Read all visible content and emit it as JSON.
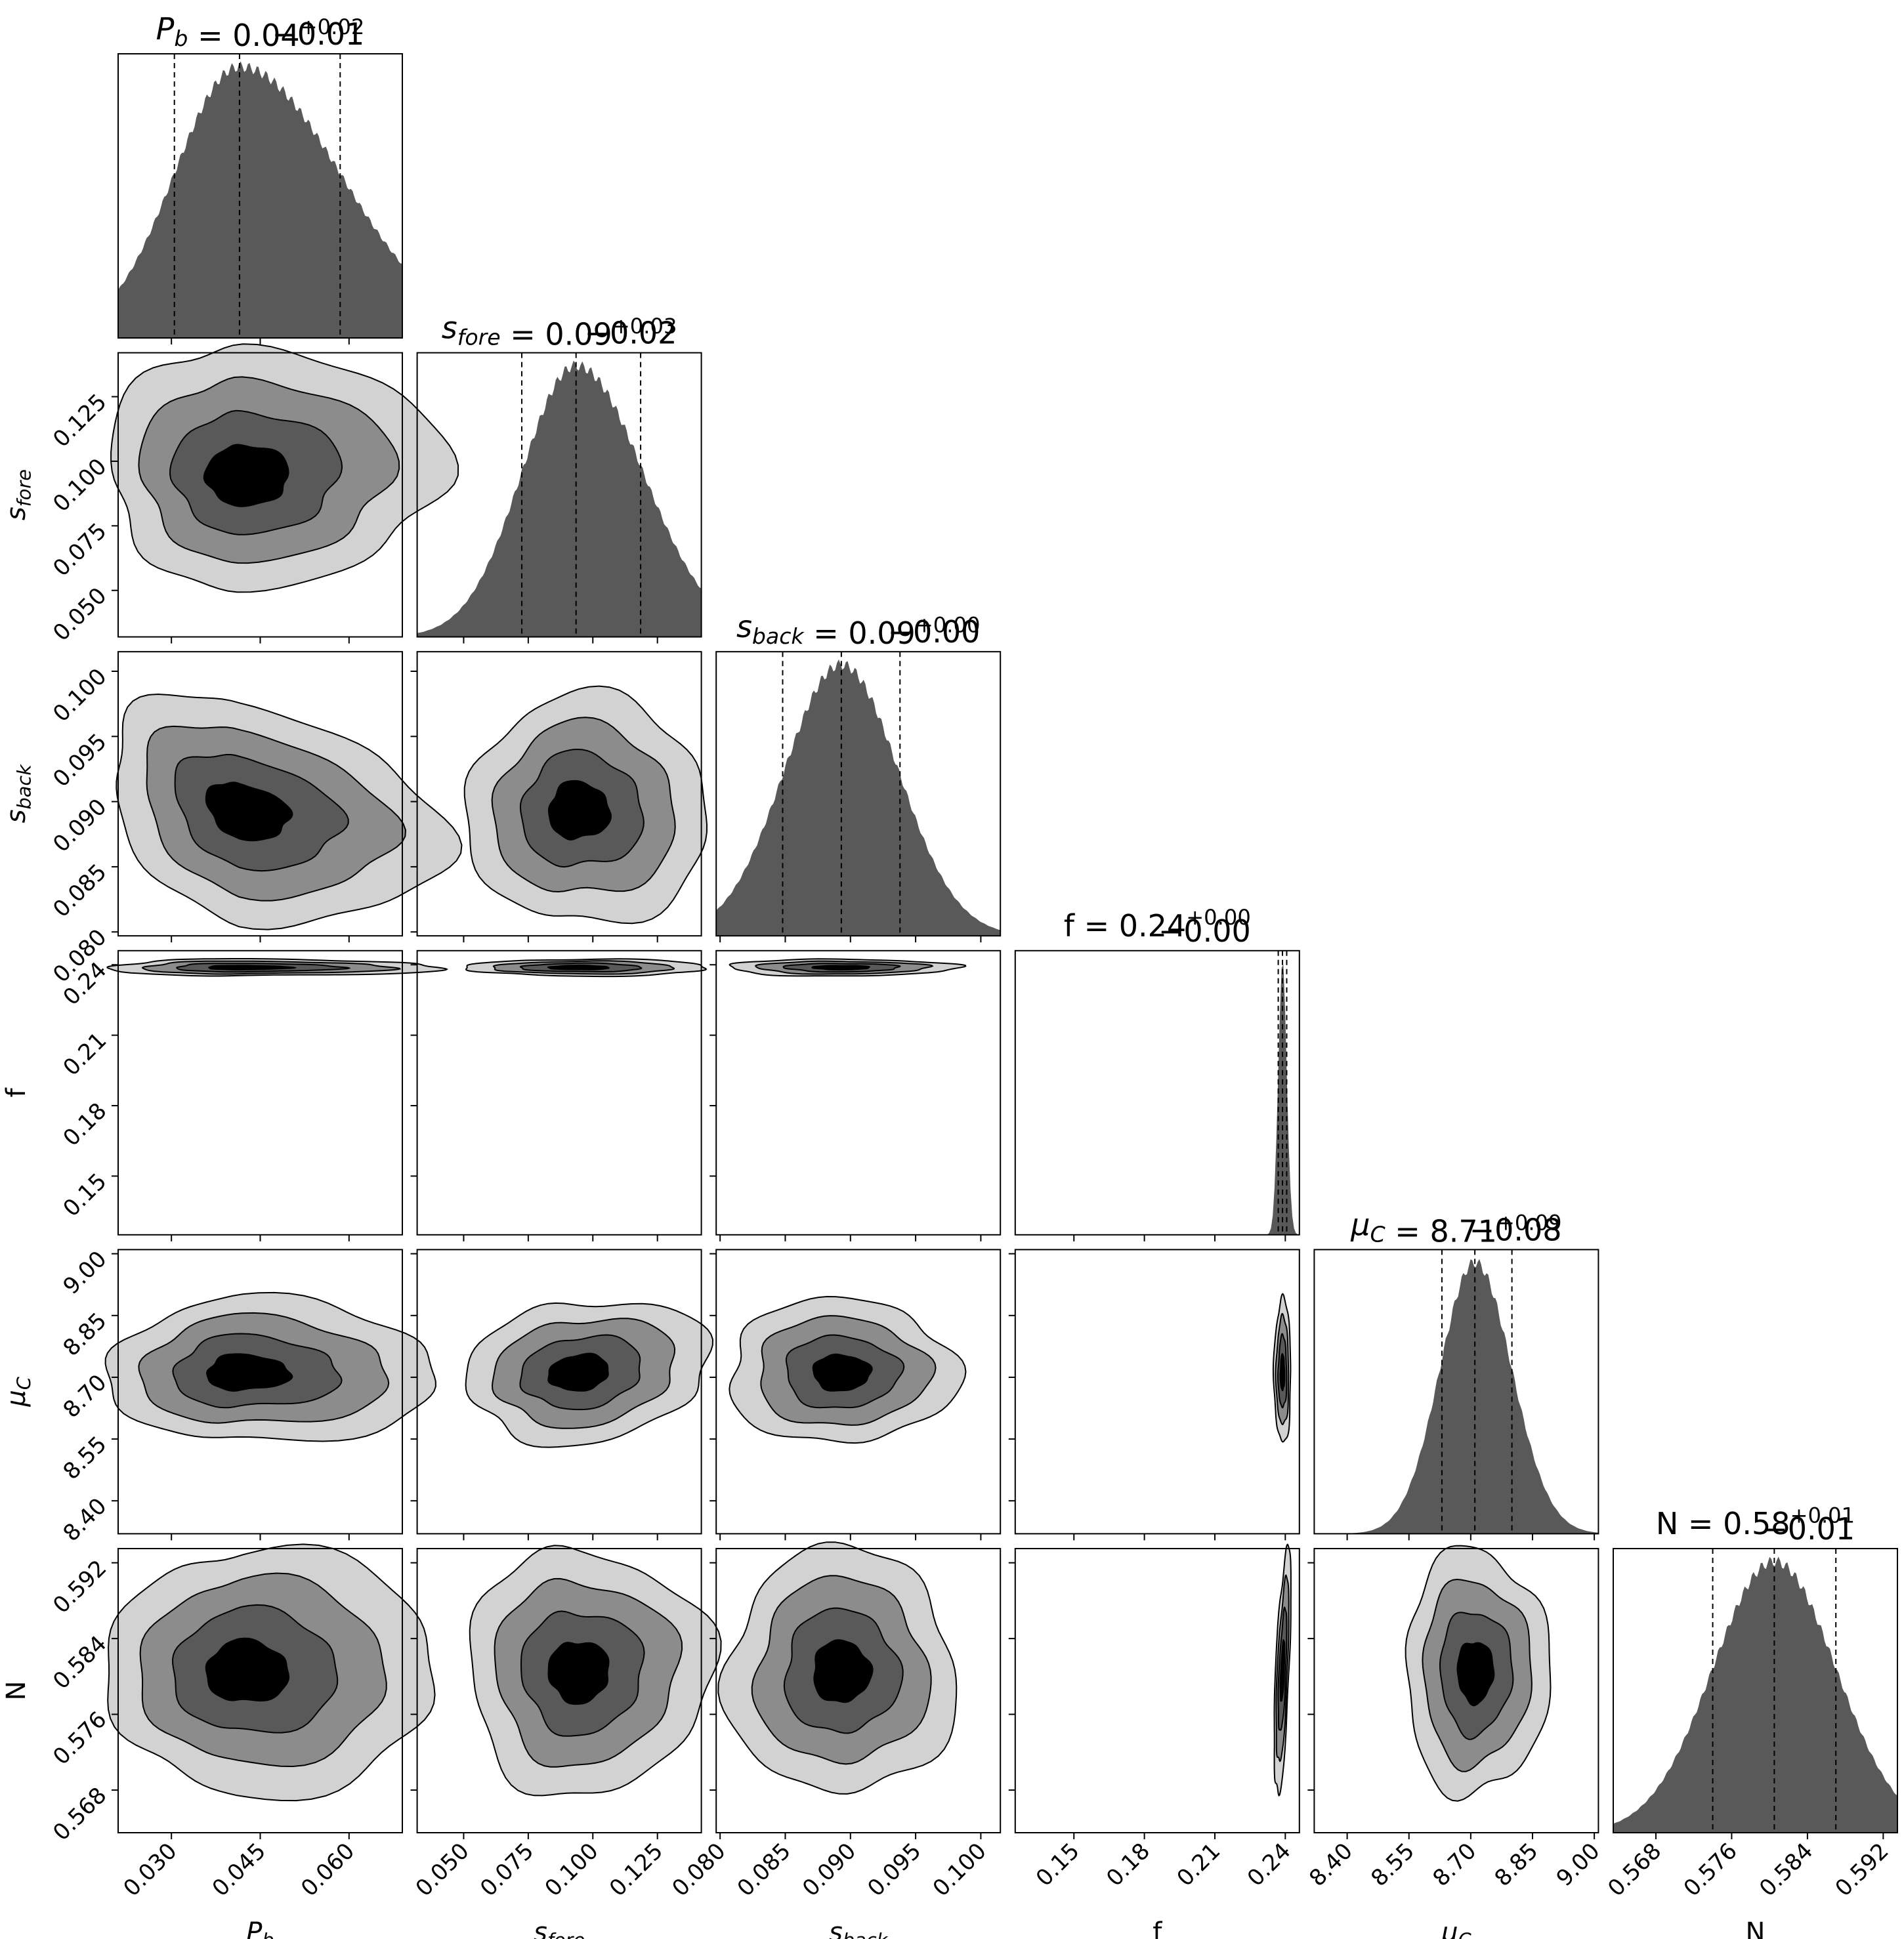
{
  "figure": {
    "title": "",
    "type": "corner-plot"
  },
  "chart_data": {
    "type": "corner",
    "parameters": [
      {
        "key": "Pb",
        "label_base": "P",
        "label_sub": "b",
        "median": "0.04",
        "plus": "+0.02",
        "minus": "−0.01",
        "range": [
          0.021,
          0.069
        ],
        "ticks": [
          0.03,
          0.045,
          0.06
        ],
        "tick_labels": [
          "0.030",
          "0.045",
          "0.060"
        ],
        "center": 0.0415,
        "sigma_lo": 0.011,
        "sigma_hi": 0.017,
        "quantiles": [
          0.0305,
          0.0415,
          0.0585
        ]
      },
      {
        "key": "sfore",
        "label_base": "s",
        "label_sub": "fore",
        "median": "0.09",
        "plus": "+0.03",
        "minus": "−0.02",
        "range": [
          0.032,
          0.142
        ],
        "ticks": [
          0.05,
          0.075,
          0.1,
          0.125
        ],
        "tick_labels": [
          "0.050",
          "0.075",
          "0.100",
          "0.125"
        ],
        "center": 0.0935,
        "sigma_lo": 0.021,
        "sigma_hi": 0.026,
        "quantiles": [
          0.0725,
          0.0935,
          0.1185
        ]
      },
      {
        "key": "sback",
        "label_base": "s",
        "label_sub": "back",
        "median": "0.09",
        "plus": "+0.00",
        "minus": "−0.00",
        "range": [
          0.0797,
          0.1015
        ],
        "ticks": [
          0.08,
          0.085,
          0.09,
          0.095,
          0.1
        ],
        "tick_labels": [
          "0.080",
          "0.085",
          "0.090",
          "0.095",
          "0.100"
        ],
        "center": 0.0893,
        "sigma_lo": 0.0044,
        "sigma_hi": 0.0044,
        "quantiles": [
          0.0848,
          0.0893,
          0.0938
        ]
      },
      {
        "key": "f",
        "label_base": "f",
        "label_sub": "",
        "median": "0.24",
        "plus": "+0.00",
        "minus": "−0.00",
        "range": [
          0.125,
          0.246
        ],
        "ticks": [
          0.15,
          0.18,
          0.21,
          0.24
        ],
        "tick_labels": [
          "0.15",
          "0.18",
          "0.21",
          "0.24"
        ],
        "center": 0.2388,
        "sigma_lo": 0.0018,
        "sigma_hi": 0.0018,
        "quantiles": [
          0.237,
          0.2388,
          0.2406
        ]
      },
      {
        "key": "muC",
        "label_base": "μ",
        "label_sub": "C",
        "median": "8.71",
        "plus": "+0.09",
        "minus": "−0.08",
        "range": [
          8.32,
          9.01
        ],
        "ticks": [
          8.4,
          8.55,
          8.7,
          8.85,
          9.0
        ],
        "tick_labels": [
          "8.40",
          "8.55",
          "8.70",
          "8.85",
          "9.00"
        ],
        "center": 8.71,
        "sigma_lo": 0.085,
        "sigma_hi": 0.09,
        "quantiles": [
          8.63,
          8.71,
          8.8
        ]
      },
      {
        "key": "N",
        "label_base": "N",
        "label_sub": "",
        "median": "0.58",
        "plus": "+0.01",
        "minus": "−0.01",
        "range": [
          0.5635,
          0.5935
        ],
        "ticks": [
          0.568,
          0.576,
          0.584,
          0.592
        ],
        "tick_labels": [
          "0.568",
          "0.576",
          "0.584",
          "0.592"
        ],
        "center": 0.5805,
        "sigma_lo": 0.0065,
        "sigma_hi": 0.0065,
        "quantiles": [
          0.574,
          0.5805,
          0.587
        ]
      }
    ],
    "contour_levels_sigma": [
      0.5,
      1.0,
      1.5,
      2.0
    ],
    "contour_fills": [
      "#000000",
      "#595959",
      "#8c8c8c",
      "#d2d2d2"
    ],
    "histogram_fill": "#595959",
    "quantile_line_style": "dashed",
    "correlations": {
      "0-1": 0.0,
      "0-2": -0.3,
      "1-2": 0.0,
      "0-3": 0.0,
      "1-3": 0.0,
      "2-3": 0.0,
      "0-4": 0.0,
      "1-4": 0.15,
      "2-4": 0.0,
      "3-4": 0.0,
      "0-5": 0.0,
      "1-5": 0.0,
      "2-5": 0.0,
      "3-5": 0.6,
      "4-5": 0.0
    }
  }
}
